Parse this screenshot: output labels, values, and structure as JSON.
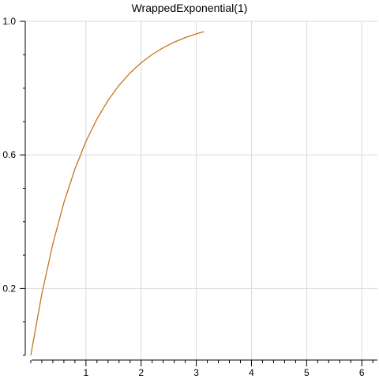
{
  "chart_data": {
    "type": "line",
    "title": "WrappedExponential(1)",
    "xlabel": "",
    "ylabel": "",
    "xlim": [
      -0.1,
      6.283
    ],
    "ylim": [
      0.0,
      1.0
    ],
    "x_ticks": [
      1,
      2,
      3,
      4,
      5,
      6
    ],
    "x_tick_labels": [
      "1",
      "2",
      "3",
      "4",
      "5",
      "6"
    ],
    "y_ticks": [
      0.2,
      0.6,
      1.0
    ],
    "y_tick_labels": [
      "0.2",
      "0.6",
      "1.0"
    ],
    "grid": true,
    "line_color": "#c8741f",
    "series": [
      {
        "x": [
          0,
          0.2,
          0.4,
          0.6,
          0.8,
          1.0,
          1.2,
          1.4,
          1.6,
          1.8,
          2.0,
          2.2,
          2.4,
          2.6,
          2.8,
          3.0,
          3.14
        ],
        "y": [
          0.0,
          0.1836,
          0.334,
          0.4571,
          0.5579,
          0.6404,
          0.7079,
          0.7632,
          0.8084,
          0.8455,
          0.8758,
          0.9007,
          0.921,
          0.9377,
          0.9513,
          0.9625,
          0.9691
        ]
      }
    ]
  }
}
